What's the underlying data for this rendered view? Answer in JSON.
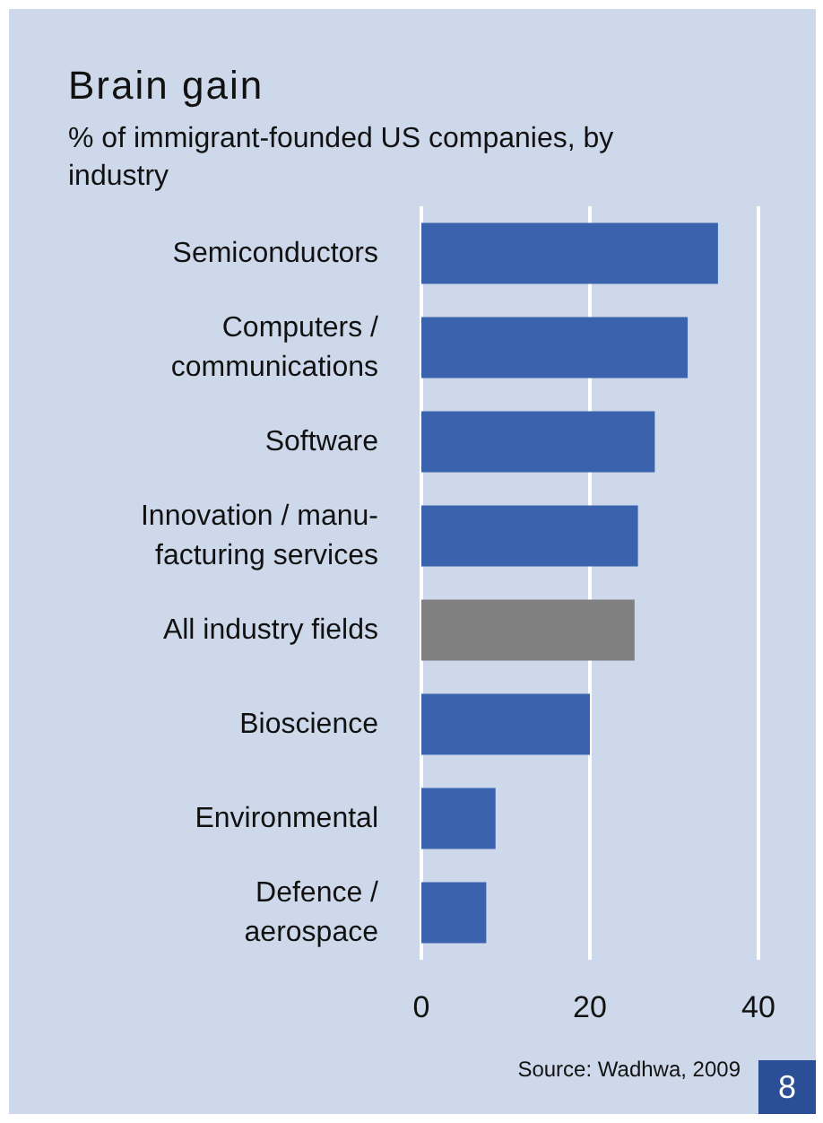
{
  "chart_data": {
    "type": "bar",
    "orientation": "horizontal",
    "title": "Brain gain",
    "subtitle": "% of immigrant-founded US companies, by industry",
    "categories": [
      "Semiconductors",
      "Computers /\ncommunications",
      "Software",
      "Innovation / manu-\nfacturing services",
      "All industry fields",
      "Bioscience",
      "Environmental",
      "Defence /\naerospace"
    ],
    "values": [
      35.2,
      31.6,
      27.7,
      25.7,
      25.3,
      20,
      8.8,
      7.7
    ],
    "colors": [
      "#3a62ad",
      "#3a62ad",
      "#3a62ad",
      "#3a62ad",
      "#808080",
      "#3a62ad",
      "#3a62ad",
      "#3a62ad"
    ],
    "xlim": [
      0,
      40
    ],
    "xticks": [
      0,
      20,
      40
    ],
    "grid": "x",
    "annotations": [
      "Source: Wadhwa, 2009",
      "8"
    ]
  }
}
